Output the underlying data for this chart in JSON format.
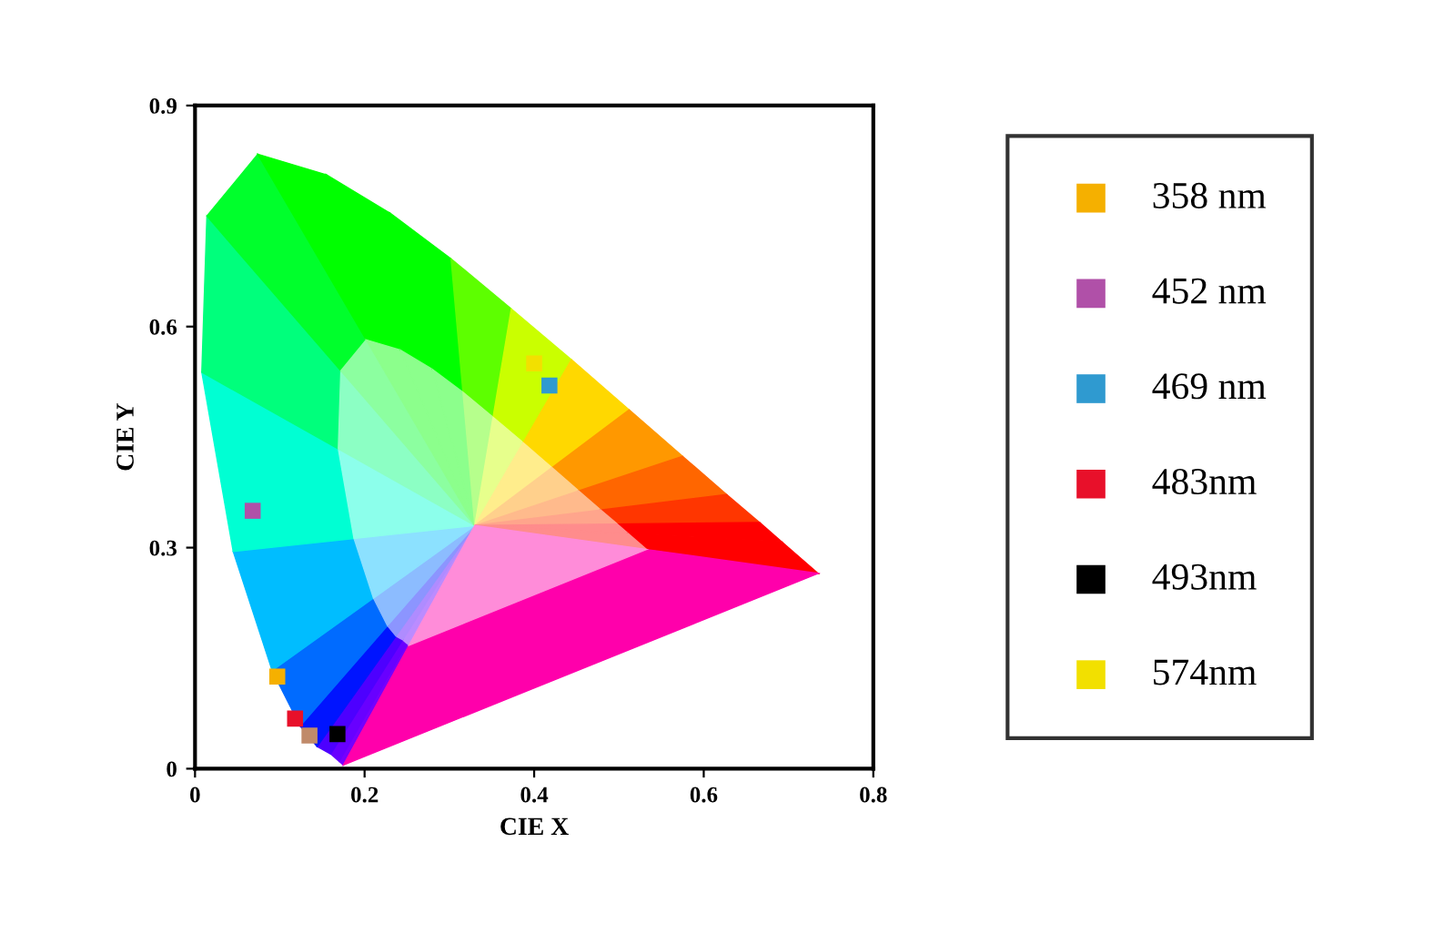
{
  "chart_data": {
    "type": "scatter",
    "xlabel": "CIE X",
    "ylabel": "CIE Y",
    "xlim": [
      0,
      0.8
    ],
    "ylim": [
      0,
      0.9
    ],
    "xticks": [
      0,
      0.2,
      0.4,
      0.6,
      0.8
    ],
    "yticks": [
      0,
      0.3,
      0.6,
      0.9
    ],
    "marker": "square",
    "legend": "right",
    "grid": false,
    "series": [
      {
        "name": "358 nm",
        "color": "#f5b000",
        "x": [
          0.097
        ],
        "values": [
          0.125
        ]
      },
      {
        "name": "452 nm",
        "color": "#b050a8",
        "x": [
          0.068
        ],
        "values": [
          0.35
        ]
      },
      {
        "name": "469 nm",
        "color": "#2f9ad0",
        "x": [
          0.418
        ],
        "values": [
          0.52
        ]
      },
      {
        "name": "483nm",
        "color": "#e8102a",
        "x": [
          0.118
        ],
        "values": [
          0.068
        ]
      },
      {
        "name": "493nm",
        "color": "#000000",
        "x": [
          0.168
        ],
        "values": [
          0.047
        ]
      },
      {
        "name": "574nm",
        "color": "#f2e000",
        "x": [
          0.4
        ],
        "values": [
          0.55
        ]
      },
      {
        "color": "#c08a6a",
        "x": [
          0.135
        ],
        "values": [
          0.045
        ]
      }
    ]
  }
}
